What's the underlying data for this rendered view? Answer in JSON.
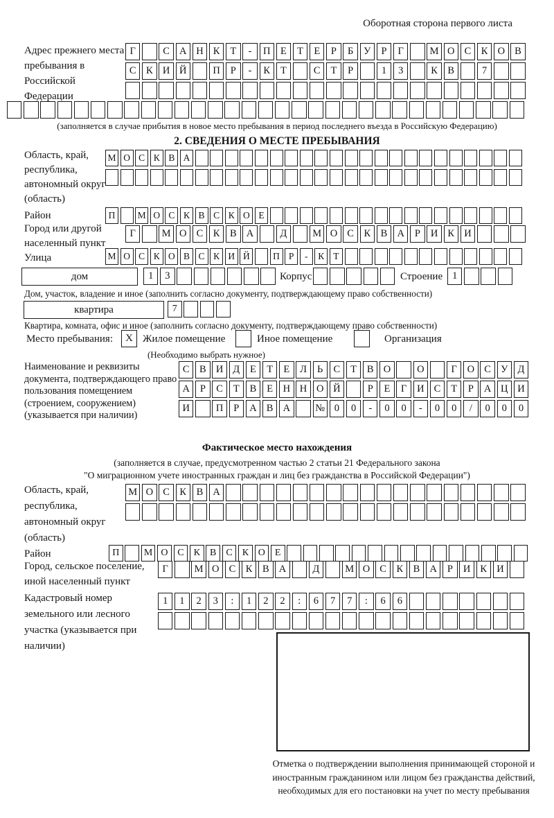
{
  "page": {
    "corner_note": "Оборотная сторона первого листа"
  },
  "prev_address": {
    "label": "Адрес прежнего места пребывания в Российской Федерации",
    "rows": [
      {
        "chars": "Г САНКТ-ПЕТЕРБУРГ МОСКОВ",
        "total": 24
      },
      {
        "chars": "СКИЙ ПР-КТ СТР 13 КВ 7",
        "total": 24
      },
      {
        "chars": "",
        "total": 24
      },
      {
        "chars": "",
        "total": 31
      }
    ],
    "note": "(заполняется в случае прибытия в новое место пребывания в период последнего въезда в Российскую Федерацию)"
  },
  "section2": {
    "title": "2. СВЕДЕНИЯ О МЕСТЕ ПРЕБЫВАНИЯ",
    "oblast": {
      "label": "Область, край, республика, автономный округ (область)",
      "rows": [
        {
          "chars": "МОСКВА",
          "total": 28
        },
        {
          "chars": "",
          "total": 28
        }
      ]
    },
    "raion": {
      "label": "Район",
      "row": {
        "chars": "П МОСКВСКОЕ",
        "total": 28
      }
    },
    "gorod": {
      "label": "Город или другой населенный пункт",
      "row": {
        "chars": "Г МОСКВА Д МОСКВАРИКИ",
        "total": 24
      }
    },
    "ulitsa": {
      "label": "Улица",
      "row": {
        "chars": "МОСКОВСКИЙ ПР-КТ",
        "total": 28
      }
    },
    "dom": {
      "box_label": "дом",
      "row": {
        "chars": "13",
        "total": 8
      },
      "korpus_label": "Корпус",
      "korpus_row": {
        "chars": "",
        "total": 5
      },
      "stroenie_label": "Строение",
      "stroenie_row": {
        "chars": "1",
        "total": 4
      },
      "note": "Дом, участок, владение и иное (заполнить согласно документу, подтверждающему право собственности)"
    },
    "kvartira": {
      "box_label": "квартира",
      "row": {
        "chars": "7",
        "total": 4
      },
      "note": "Квартира, комната, офис и иное (заполнить согласно документу, подтверждающему право собственности)"
    },
    "mesto": {
      "label": "Место пребывания:",
      "options": [
        {
          "label": "Жилое помещение",
          "checked": "X"
        },
        {
          "label": "Иное помещение",
          "checked": ""
        },
        {
          "label": "Организация",
          "checked": ""
        }
      ],
      "note": "(Необходимо выбрать нужное)"
    },
    "document": {
      "label": "Наименование и реквизиты документа, подтверждающего право пользования помещением (строением, сооружением) (указывается при наличии)",
      "rows": [
        {
          "chars": "СВИДЕТЕЛЬСТВО О ГОСУД",
          "total": 21
        },
        {
          "chars": "АРСТВЕННОЙ РЕГИСТРАЦИ",
          "total": 21
        },
        {
          "chars": "И ПРАВА №00-00-00/000",
          "total": 21
        }
      ]
    }
  },
  "fact": {
    "title": "Фактическое место нахождения",
    "note1": "(заполняется в случае, предусмотренном частью 2 статьи 21 Федерального закона",
    "note2": "\"О миграционном учете иностранных граждан и лиц без гражданства в Российской Федерации\")",
    "oblast": {
      "label": "Область, край, республика, автономный округ (область)",
      "rows": [
        {
          "chars": "МОСКВА",
          "total": 24
        },
        {
          "chars": "",
          "total": 24
        }
      ]
    },
    "raion": {
      "label": "Район",
      "row": {
        "chars": "П МОСКВСКОЕ",
        "total": 26
      }
    },
    "gorod": {
      "label": "Город, сельское поселение, иной населенный пункт",
      "row": {
        "chars": "Г МОСКВА Д МОСКВАРИКИ",
        "total": 22
      }
    },
    "kadastr": {
      "label": "Кадастровый номер земельного или лесного участка (указывается при наличии)",
      "rows": [
        {
          "chars": "1123:122:677:66",
          "total": 22
        },
        {
          "chars": "",
          "total": 22
        }
      ]
    },
    "stamp_note": "Отметка о подтверждении выполнения принимающей стороной и иностранным гражданином или лицом без гражданства действий, необходимых для его постановки на учет по месту пребывания"
  }
}
